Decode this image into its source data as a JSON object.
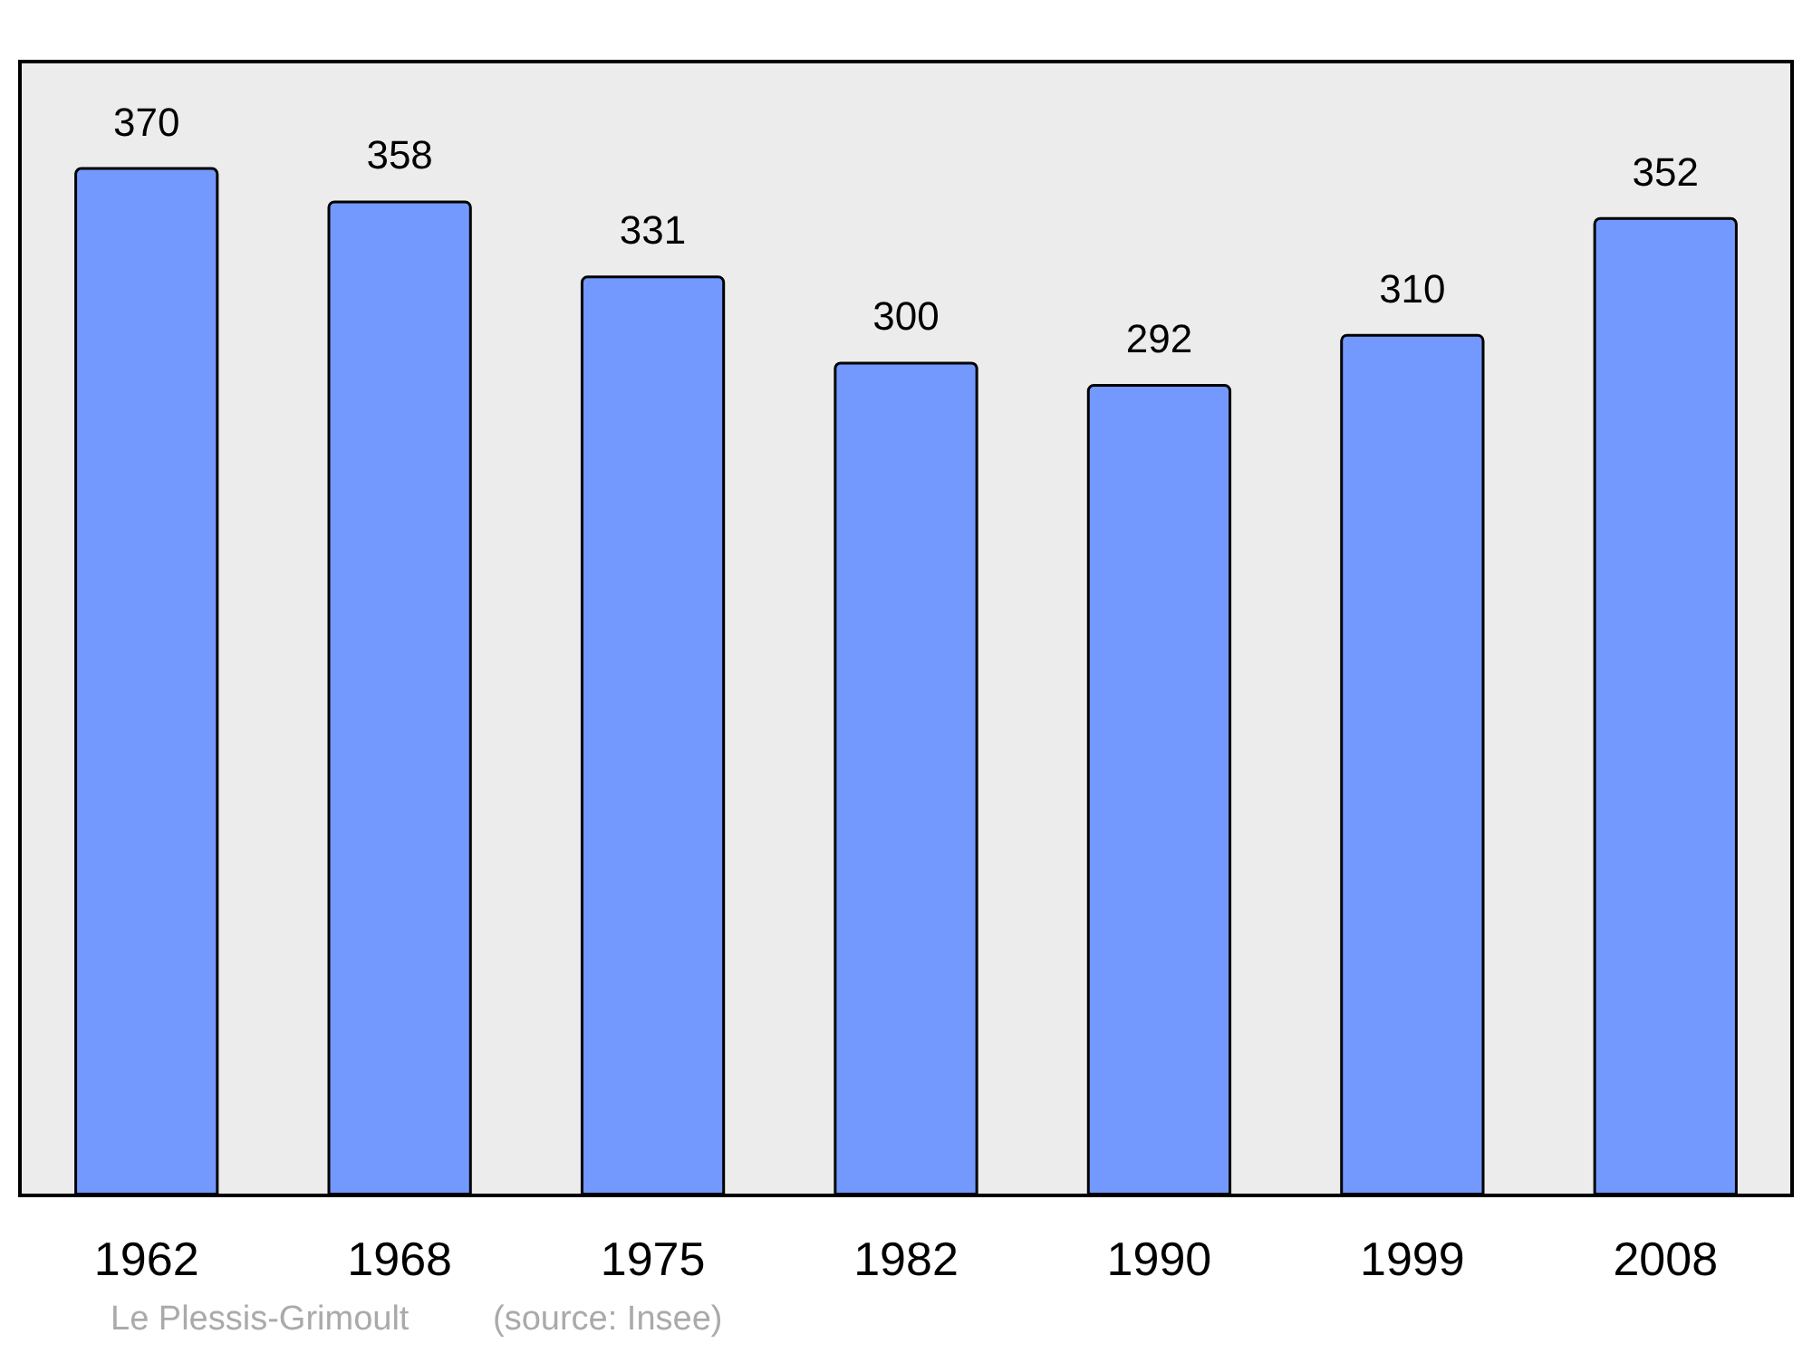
{
  "chart_data": {
    "type": "bar",
    "categories": [
      "1962",
      "1968",
      "1975",
      "1982",
      "1990",
      "1999",
      "2008"
    ],
    "values": [
      370,
      358,
      331,
      300,
      292,
      310,
      352
    ],
    "color": "#7399ff",
    "ylim": [
      0,
      408
    ],
    "tick_labels": "x",
    "data_labels": true,
    "annotations": [
      "Le Plessis-Grimoult",
      "(source: Insee)"
    ]
  }
}
